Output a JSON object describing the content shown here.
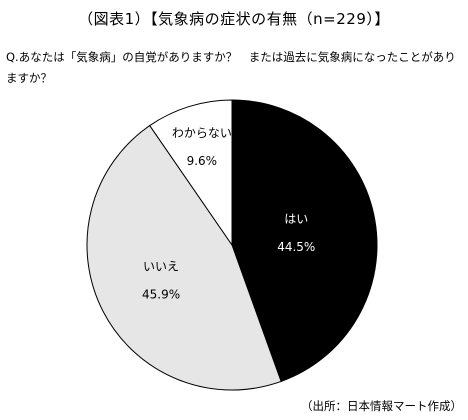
{
  "title": "（図表1）【気象病の症状の有無（n=229）】",
  "question": "Q.あなたは「気象病」の自覚がありますか？　または過去に気象病になったことがありますか？",
  "source": "（出所：日本情報マート作成）",
  "chart_data": {
    "type": "pie",
    "title": "（図表1）【気象病の症状の有無（n=229）】",
    "slices": [
      {
        "label": "はい",
        "value": 44.5,
        "display": "44.5%",
        "color": "#000000",
        "text_color": "#ffffff"
      },
      {
        "label": "いいえ",
        "value": 45.9,
        "display": "45.9%",
        "color": "#e6e6e6",
        "text_color": "#000000"
      },
      {
        "label": "わからない",
        "value": 9.6,
        "display": "9.6%",
        "color": "#ffffff",
        "text_color": "#000000"
      }
    ],
    "start_angle_deg": 0,
    "direction": "clockwise",
    "labels_inside": true,
    "legend": "none"
  }
}
